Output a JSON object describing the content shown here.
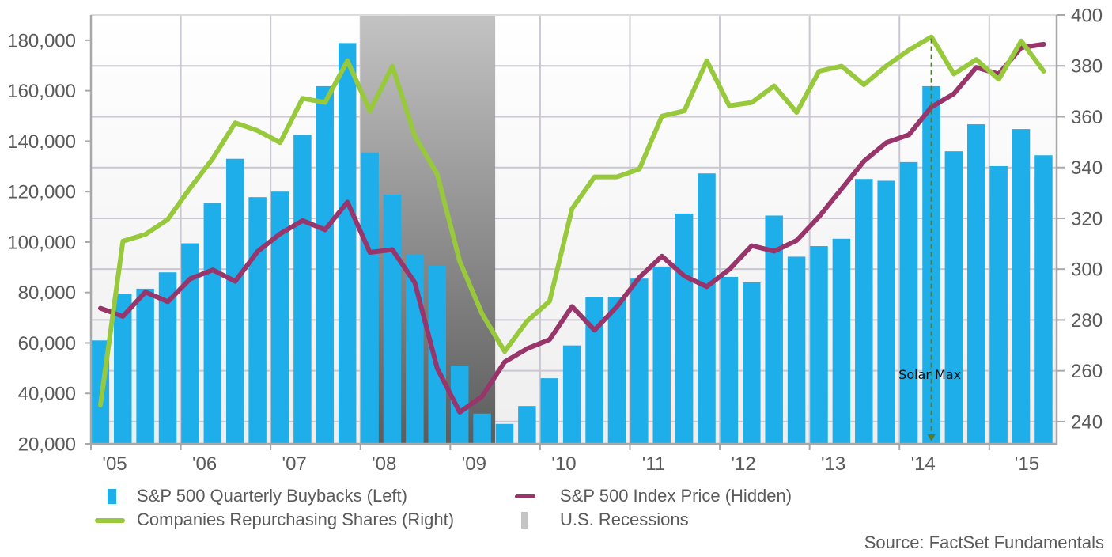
{
  "source": "Source: FactSet Fundamentals",
  "colors": {
    "buybacks": "#1eaeea",
    "repurchasing": "#98c93c",
    "index_price": "#98356a",
    "recession_top": "#c3c3c3",
    "recession_bottom": "#5c5c5c",
    "recession_legend": "#c4c4c4",
    "grid": "#cac6d2",
    "axis": "#a8a8a8",
    "annotation_line": "#557a2a",
    "text": "#5a5a5a"
  },
  "chart_data": {
    "type": "bar",
    "title": "",
    "xlabel": "",
    "ylabel": "",
    "grid": true,
    "legend_position": "bottom",
    "xlim": [
      2005,
      2015.75
    ],
    "x": [
      2005,
      2005.25,
      2005.5,
      2005.75,
      2006,
      2006.25,
      2006.5,
      2006.75,
      2007,
      2007.25,
      2007.5,
      2007.75,
      2008,
      2008.25,
      2008.5,
      2008.75,
      2009,
      2009.25,
      2009.5,
      2009.75,
      2010,
      2010.25,
      2010.5,
      2010.75,
      2011,
      2011.25,
      2011.5,
      2011.75,
      2012,
      2012.25,
      2012.5,
      2012.75,
      2013,
      2013.25,
      2013.5,
      2013.75,
      2014,
      2014.25,
      2014.5,
      2014.75,
      2015,
      2015.25,
      2015.5
    ],
    "x_tick_values": [
      2005,
      2006,
      2007,
      2008,
      2009,
      2010,
      2011,
      2012,
      2013,
      2014,
      2015
    ],
    "x_tick_labels": [
      "'05",
      "'06",
      "'07",
      "'08",
      "'09",
      "'10",
      "'11",
      "'12",
      "'13",
      "'14",
      "'15"
    ],
    "y_left": {
      "ylim": [
        20000,
        190000
      ],
      "ticks": [
        20000,
        40000,
        60000,
        80000,
        100000,
        120000,
        140000,
        160000,
        180000
      ],
      "tick_labels": [
        "20,000",
        "40,000",
        "60,000",
        "80,000",
        "100,000",
        "120,000",
        "140,000",
        "160,000",
        "180,000"
      ]
    },
    "y_right": {
      "ylim": [
        231.25,
        400
      ],
      "ticks": [
        240,
        260,
        280,
        300,
        320,
        340,
        360,
        380,
        400
      ],
      "tick_labels": [
        "240",
        "260",
        "280",
        "300",
        "320",
        "340",
        "360",
        "380",
        "400"
      ]
    },
    "series": [
      {
        "name": "S&P 500 Quarterly Buybacks (Left)",
        "type": "bar",
        "axis": "left",
        "values": [
          61000,
          79500,
          81500,
          88000,
          99500,
          115500,
          133000,
          117800,
          120000,
          142500,
          161800,
          178900,
          135500,
          118800,
          95000,
          90700,
          51000,
          32000,
          27900,
          35000,
          46000,
          59000,
          78300,
          78300,
          85500,
          90300,
          111300,
          127200,
          86200,
          84000,
          110500,
          94200,
          98400,
          101300,
          125000,
          124300,
          131700,
          161800,
          136000,
          146700,
          130100,
          144800,
          134400
        ]
      },
      {
        "name": "Companies Repurchasing Shares (Right)",
        "type": "line",
        "axis": "right",
        "values": [
          246.5,
          311.0,
          313.7,
          319.6,
          332.0,
          343.5,
          357.6,
          354.5,
          349.8,
          367.2,
          365.6,
          382.0,
          362.3,
          379.9,
          352.4,
          337.3,
          303.0,
          282.3,
          267.6,
          279.6,
          287.4,
          323.8,
          336.3,
          336.3,
          339.4,
          360.2,
          362.3,
          382.0,
          364.3,
          365.6,
          372.1,
          361.7,
          377.9,
          379.9,
          372.6,
          380.0,
          386.2,
          391.4,
          376.8,
          382.5,
          374.7,
          389.8,
          377.9
        ]
      },
      {
        "name": "S&P 500 Index Price (Hidden)",
        "type": "line",
        "axis": "right",
        "values": [
          284.6,
          281.4,
          291.0,
          287.2,
          296.2,
          299.7,
          295.2,
          307.0,
          313.9,
          319.1,
          315.5,
          326.4,
          306.6,
          307.7,
          294.7,
          260.9,
          243.7,
          250.0,
          263.5,
          268.7,
          272.3,
          285.3,
          276.0,
          285.3,
          296.8,
          305.1,
          297.3,
          293.1,
          299.9,
          309.2,
          307.1,
          311.3,
          320.7,
          331.6,
          342.5,
          349.8,
          352.9,
          363.8,
          369.0,
          379.4,
          376.8,
          387.2,
          388.5
        ]
      }
    ],
    "shaded_regions": [
      {
        "name": "U.S. Recessions",
        "x_range": [
          2008,
          2009.5
        ]
      }
    ],
    "annotations": [
      {
        "text": "Solar Max",
        "x": 2014.25,
        "from_series_value": 391.4,
        "style": "dashed-arrow-down"
      }
    ]
  }
}
